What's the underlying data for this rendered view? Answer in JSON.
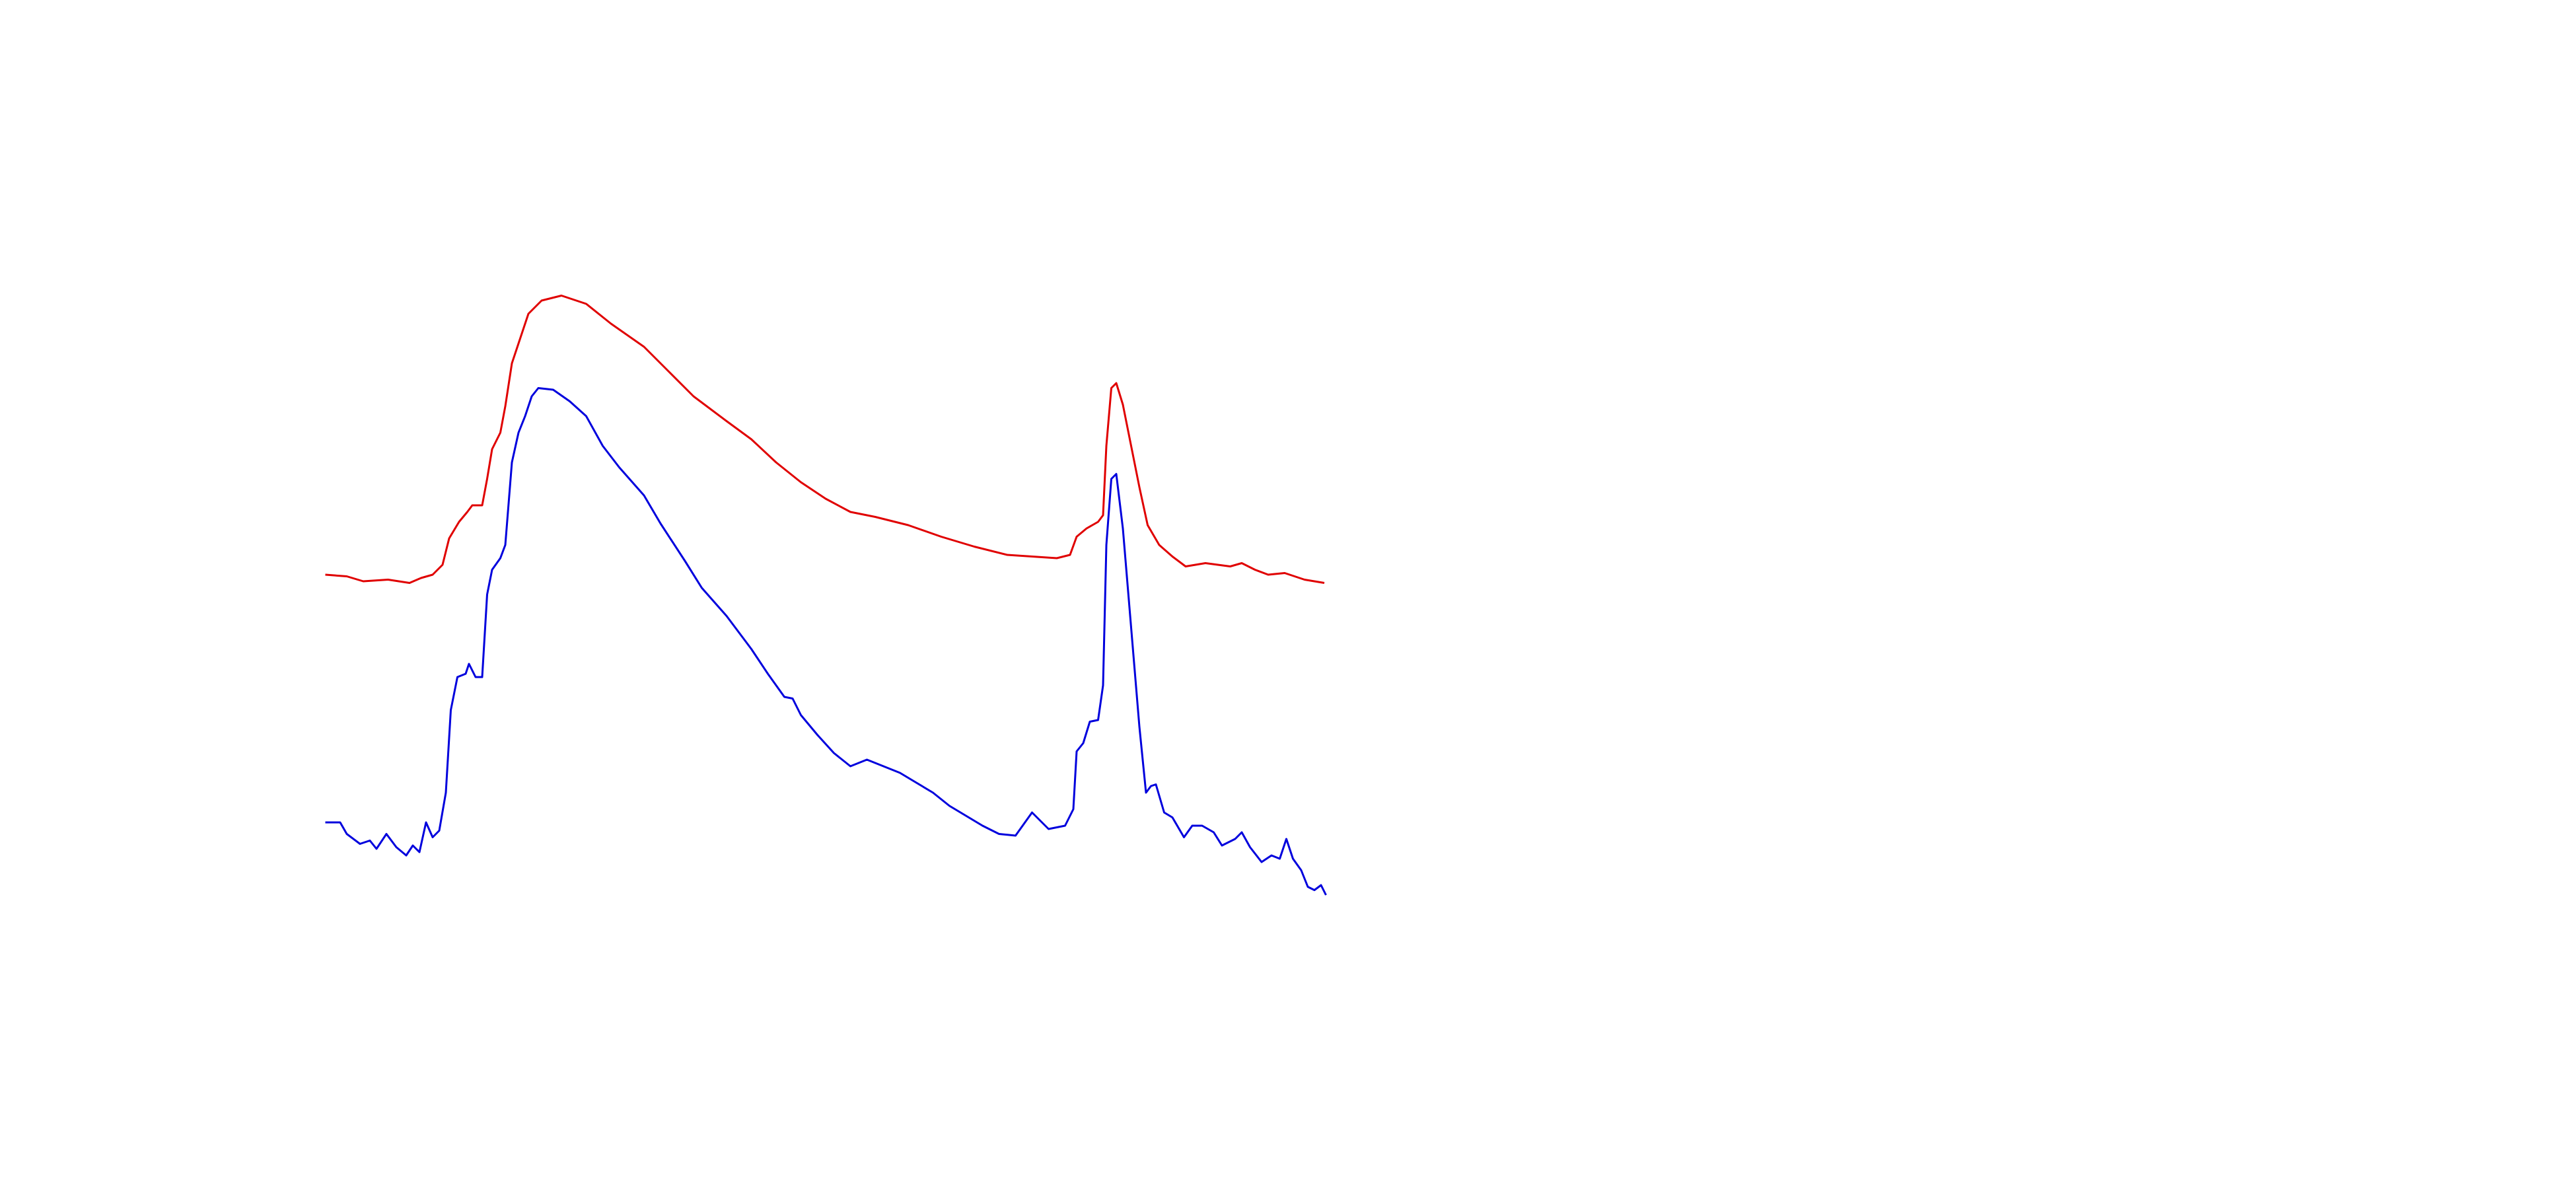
{
  "chart_data": {
    "type": "line",
    "xlim": [
      0,
      1560
    ],
    "ylim": [
      0,
      720
    ],
    "series": [
      {
        "color": "#e00000",
        "x": [
          197,
          210,
          220,
          235,
          248,
          255,
          262,
          268,
          272,
          278,
          283,
          286,
          292,
          295,
          298,
          303,
          306,
          310,
          315,
          320,
          328,
          340,
          355,
          370,
          390,
          405,
          420,
          440,
          455,
          470,
          485,
          500,
          515,
          530,
          550,
          570,
          590,
          610,
          625,
          640,
          648,
          652,
          658,
          665,
          668,
          670,
          673,
          676,
          680,
          685,
          690,
          695,
          702,
          710,
          718,
          730,
          745,
          752,
          760,
          768,
          778,
          790,
          802
        ],
        "values": [
          372,
          371,
          368,
          369,
          367,
          370,
          372,
          378,
          394,
          404,
          410,
          414,
          414,
          430,
          448,
          458,
          474,
          500,
          515,
          530,
          538,
          541,
          536,
          524,
          510,
          495,
          480,
          465,
          454,
          440,
          428,
          418,
          410,
          407,
          402,
          395,
          389,
          384,
          383,
          382,
          384,
          395,
          400,
          404,
          408,
          450,
          485,
          488,
          475,
          450,
          425,
          402,
          390,
          383,
          377,
          379,
          377,
          379,
          375,
          372,
          373,
          369,
          367
        ]
      },
      {
        "color": "#0000dd",
        "x": [
          197,
          206,
          210,
          218,
          224,
          228,
          234,
          240,
          246,
          250,
          254,
          258,
          262,
          266,
          270,
          273,
          277,
          282,
          284,
          288,
          292,
          295,
          298,
          303,
          306,
          310,
          314,
          318,
          322,
          326,
          335,
          345,
          355,
          365,
          375,
          390,
          400,
          415,
          425,
          440,
          455,
          465,
          475,
          480,
          485,
          495,
          505,
          515,
          525,
          535,
          545,
          555,
          565,
          575,
          585,
          595,
          605,
          615,
          625,
          635,
          645,
          650,
          652,
          656,
          660,
          665,
          668,
          670,
          673,
          676,
          680,
          685,
          690,
          694,
          697,
          700,
          705,
          710,
          717,
          722,
          728,
          735,
          740,
          748,
          752,
          757,
          764,
          770,
          775,
          779,
          783,
          788,
          792,
          796,
          800,
          803
        ],
        "values": [
          222,
          222,
          215,
          209,
          211,
          206,
          215,
          207,
          202,
          208,
          204,
          222,
          213,
          217,
          240,
          290,
          310,
          312,
          318,
          310,
          310,
          360,
          375,
          382,
          390,
          440,
          458,
          468,
          480,
          485,
          484,
          477,
          468,
          450,
          437,
          420,
          403,
          380,
          364,
          347,
          327,
          312,
          298,
          297,
          287,
          275,
          264,
          256,
          260,
          256,
          252,
          246,
          240,
          232,
          226,
          220,
          215,
          214,
          228,
          218,
          220,
          230,
          265,
          270,
          283,
          284,
          305,
          390,
          430,
          433,
          400,
          340,
          280,
          240,
          244,
          245,
          228,
          225,
          213,
          220,
          220,
          216,
          208,
          212,
          216,
          207,
          198,
          202,
          200,
          212,
          200,
          193,
          183,
          181,
          184,
          178
        ]
      }
    ]
  }
}
